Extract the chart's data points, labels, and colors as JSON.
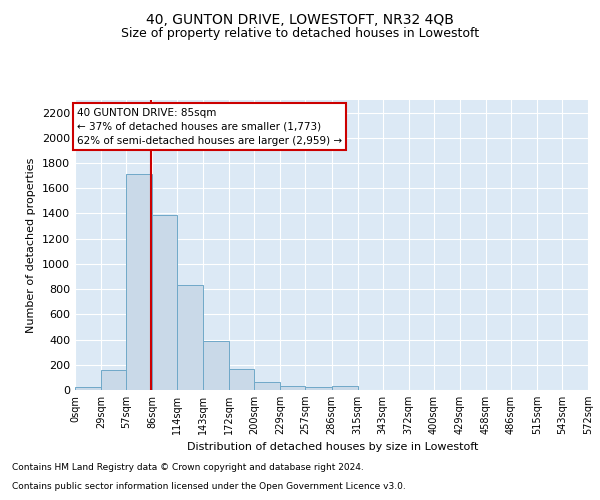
{
  "title": "40, GUNTON DRIVE, LOWESTOFT, NR32 4QB",
  "subtitle": "Size of property relative to detached houses in Lowestoft",
  "xlabel": "Distribution of detached houses by size in Lowestoft",
  "ylabel": "Number of detached properties",
  "bar_edges": [
    0,
    29,
    57,
    86,
    114,
    143,
    172,
    200,
    229,
    257,
    286,
    315,
    343,
    372,
    400,
    429,
    458,
    486,
    515,
    543,
    572
  ],
  "bar_heights": [
    20,
    155,
    1710,
    1390,
    830,
    385,
    165,
    65,
    35,
    25,
    30,
    0,
    0,
    0,
    0,
    0,
    0,
    0,
    0,
    0
  ],
  "bar_color": "#c9d9e8",
  "bar_edgecolor": "#6fa8c8",
  "vline_x": 85,
  "vline_color": "#cc0000",
  "annotation_line1": "40 GUNTON DRIVE: 85sqm",
  "annotation_line2": "← 37% of detached houses are smaller (1,773)",
  "annotation_line3": "62% of semi-detached houses are larger (2,959) →",
  "annotation_box_color": "#ffffff",
  "annotation_box_edgecolor": "#cc0000",
  "ylim": [
    0,
    2300
  ],
  "yticks": [
    0,
    200,
    400,
    600,
    800,
    1000,
    1200,
    1400,
    1600,
    1800,
    2000,
    2200
  ],
  "tick_labels": [
    "0sqm",
    "29sqm",
    "57sqm",
    "86sqm",
    "114sqm",
    "143sqm",
    "172sqm",
    "200sqm",
    "229sqm",
    "257sqm",
    "286sqm",
    "315sqm",
    "343sqm",
    "372sqm",
    "400sqm",
    "429sqm",
    "458sqm",
    "486sqm",
    "515sqm",
    "543sqm",
    "572sqm"
  ],
  "footnote1": "Contains HM Land Registry data © Crown copyright and database right 2024.",
  "footnote2": "Contains public sector information licensed under the Open Government Licence v3.0.",
  "bg_color": "#dce9f5",
  "fig_bg_color": "#ffffff",
  "title_fontsize": 10,
  "subtitle_fontsize": 9,
  "footnote_fontsize": 6.5
}
